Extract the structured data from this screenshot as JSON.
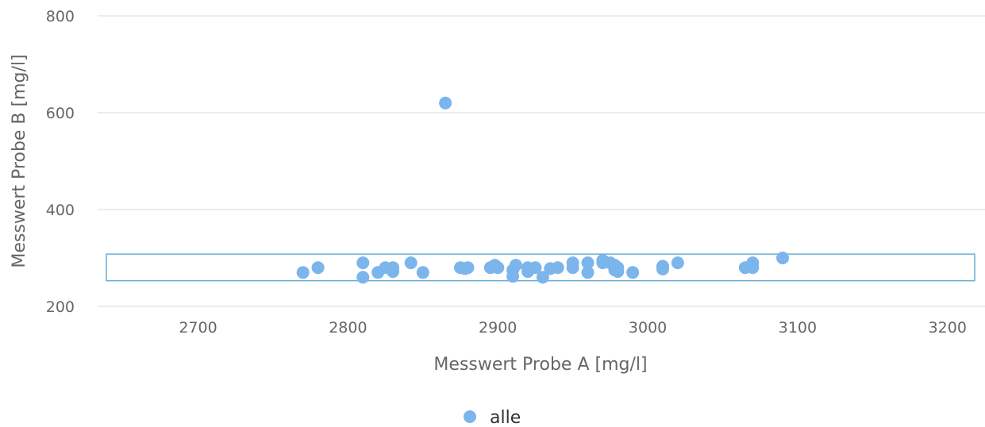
{
  "colors": {
    "series": "#7cb5ec",
    "band": "#6aaed6",
    "grid": "#e6e6e6",
    "axis_text": "#666666"
  },
  "chart_data": {
    "type": "scatter",
    "title": "",
    "xlabel": "Messwert Probe A [mg/l]",
    "ylabel": "Messwert Probe B [mg/l]",
    "xlim": [
      2633,
      3225
    ],
    "ylim": [
      200,
      800
    ],
    "x_ticks": [
      2700,
      2800,
      2900,
      3000,
      3100,
      3200
    ],
    "y_ticks": [
      200,
      400,
      600,
      800
    ],
    "x_tick_labels": [
      "2700",
      "2800",
      "2900",
      "3000",
      "3100",
      "3200"
    ],
    "y_tick_labels": [
      "200",
      "400",
      "600",
      "800"
    ],
    "grid": {
      "y": true,
      "x": false
    },
    "legend": {
      "position": "bottom-center"
    },
    "highlight_band": {
      "y_range": [
        253,
        308
      ]
    },
    "series": [
      {
        "name": "alle",
        "color": "#7cb5ec",
        "points": [
          [
            2770,
            270
          ],
          [
            2780,
            280
          ],
          [
            2810,
            290
          ],
          [
            2810,
            260
          ],
          [
            2820,
            270
          ],
          [
            2825,
            280
          ],
          [
            2830,
            280
          ],
          [
            2830,
            272
          ],
          [
            2842,
            290
          ],
          [
            2850,
            270
          ],
          [
            2865,
            620
          ],
          [
            2875,
            280
          ],
          [
            2878,
            278
          ],
          [
            2880,
            280
          ],
          [
            2895,
            280
          ],
          [
            2898,
            285
          ],
          [
            2900,
            280
          ],
          [
            2910,
            275
          ],
          [
            2910,
            262
          ],
          [
            2912,
            285
          ],
          [
            2920,
            280
          ],
          [
            2920,
            272
          ],
          [
            2925,
            280
          ],
          [
            2930,
            260
          ],
          [
            2935,
            278
          ],
          [
            2940,
            280
          ],
          [
            2950,
            290
          ],
          [
            2950,
            280
          ],
          [
            2960,
            290
          ],
          [
            2960,
            270
          ],
          [
            2970,
            295
          ],
          [
            2970,
            290
          ],
          [
            2975,
            290
          ],
          [
            2978,
            285
          ],
          [
            2978,
            275
          ],
          [
            2980,
            280
          ],
          [
            2980,
            272
          ],
          [
            2990,
            270
          ],
          [
            3010,
            283
          ],
          [
            3010,
            277
          ],
          [
            3020,
            290
          ],
          [
            3065,
            280
          ],
          [
            3070,
            290
          ],
          [
            3070,
            280
          ],
          [
            3090,
            300
          ]
        ]
      }
    ]
  }
}
